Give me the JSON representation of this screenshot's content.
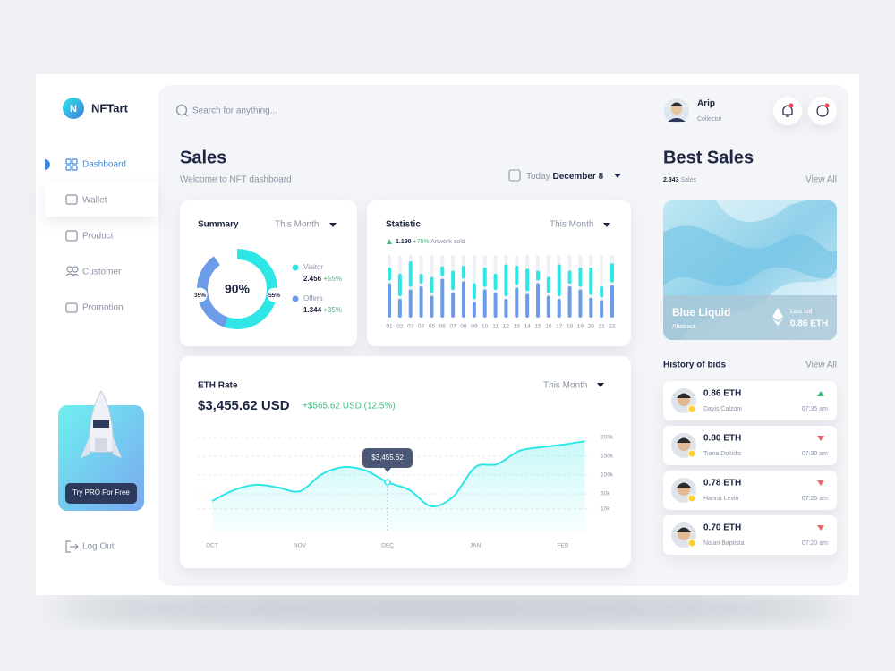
{
  "brand": {
    "logo": "N",
    "name": "NFTart"
  },
  "nav": [
    "Dashboard",
    "Wallet",
    "Product",
    "Customer",
    "Promotion"
  ],
  "promo": {
    "button": "Try PRO For Free"
  },
  "logout": "Log Out",
  "search": {
    "placeholder": "Search for anything..."
  },
  "user": {
    "name": "Arip",
    "role": "Collector"
  },
  "sales": {
    "title": "Sales",
    "subtitle": "Welcome to NFT dashboard",
    "date_prefix": "Today",
    "date": "December 8"
  },
  "summary": {
    "title": "Summary",
    "period": "This Month",
    "legend_values": [
      "2.456",
      "1.344"
    ],
    "legend_changes": [
      "+55%",
      "+35%"
    ],
    "chart_data": {
      "type": "pie",
      "center_label": "90%",
      "categories": [
        "Visitor",
        "Offers"
      ],
      "values": [
        55,
        35
      ],
      "value_labels": [
        "55%",
        "35%"
      ],
      "colors": [
        "#2ee6e6",
        "#6c9be8"
      ]
    }
  },
  "statistic": {
    "title": "Statistic",
    "period": "This Month",
    "stat_value": "1.190",
    "stat_change": "+75%",
    "stat_note": "Artwork sold",
    "chart_data": {
      "type": "bar",
      "stacked": true,
      "categories": [
        "01",
        "02",
        "03",
        "04",
        "05",
        "06",
        "07",
        "08",
        "09",
        "10",
        "11",
        "12",
        "13",
        "14",
        "15",
        "16",
        "17",
        "18",
        "19",
        "20",
        "21",
        "22"
      ],
      "ylim": [
        0,
        100
      ],
      "series": [
        {
          "color": "#6c9be8",
          "values": [
            55,
            30,
            45,
            50,
            35,
            62,
            40,
            58,
            25,
            45,
            40,
            30,
            48,
            38,
            55,
            35,
            30,
            50,
            45,
            32,
            28,
            52
          ]
        },
        {
          "color": "#2ee6e6",
          "values": [
            25,
            40,
            45,
            20,
            30,
            20,
            35,
            25,
            30,
            35,
            30,
            55,
            35,
            40,
            20,
            30,
            55,
            25,
            35,
            48,
            22,
            35
          ]
        }
      ]
    }
  },
  "eth": {
    "title": "ETH Rate",
    "period": "This Month",
    "price": "$3,455.62 USD",
    "change": "+$565.62 USD (12.5%)",
    "chart_data": {
      "type": "line",
      "color": "#2ee6e6",
      "grid": true,
      "categories": [
        "OCT",
        null,
        null,
        null,
        "NOV",
        null,
        null,
        null,
        "DEC",
        null,
        null,
        null,
        "JAN",
        null,
        null,
        null,
        "FEB",
        null
      ],
      "values": [
        31000,
        60000,
        74000,
        67000,
        57000,
        102000,
        121000,
        112000,
        81000,
        60000,
        17000,
        43000,
        121000,
        129000,
        164000,
        174000,
        181000,
        190000
      ],
      "ylim": [
        0,
        200000
      ],
      "yticks": [
        {
          "value": 10000,
          "label": "10k"
        },
        {
          "value": 50000,
          "label": "50k"
        },
        {
          "value": 100000,
          "label": "100k"
        },
        {
          "value": 150000,
          "label": "150k"
        },
        {
          "value": 200000,
          "label": "200k"
        }
      ],
      "annotations": [
        {
          "x": "DEC",
          "label": "$3,455.62"
        }
      ]
    }
  },
  "best": {
    "title": "Best Sales",
    "count": "2.343",
    "count_label": "Sales",
    "view_all": "View All",
    "feature": {
      "name": "Blue Liquid",
      "category": "Abstract",
      "bid_label": "Last bid",
      "bid": "0.86 ETH"
    }
  },
  "history": {
    "title": "History of bids",
    "view_all": "View All",
    "bids": [
      {
        "amount": "0.86 ETH",
        "name": "Davis Calzoni",
        "time": "07:35 am",
        "trend": "up"
      },
      {
        "amount": "0.80 ETH",
        "name": "Tiana Dokidis",
        "time": "07:30 am",
        "trend": "down"
      },
      {
        "amount": "0.78 ETH",
        "name": "Hanna Levin",
        "time": "07:25 am",
        "trend": "down"
      },
      {
        "amount": "0.70 ETH",
        "name": "Nolan Baptista",
        "time": "07:20 am",
        "trend": "down"
      }
    ]
  }
}
